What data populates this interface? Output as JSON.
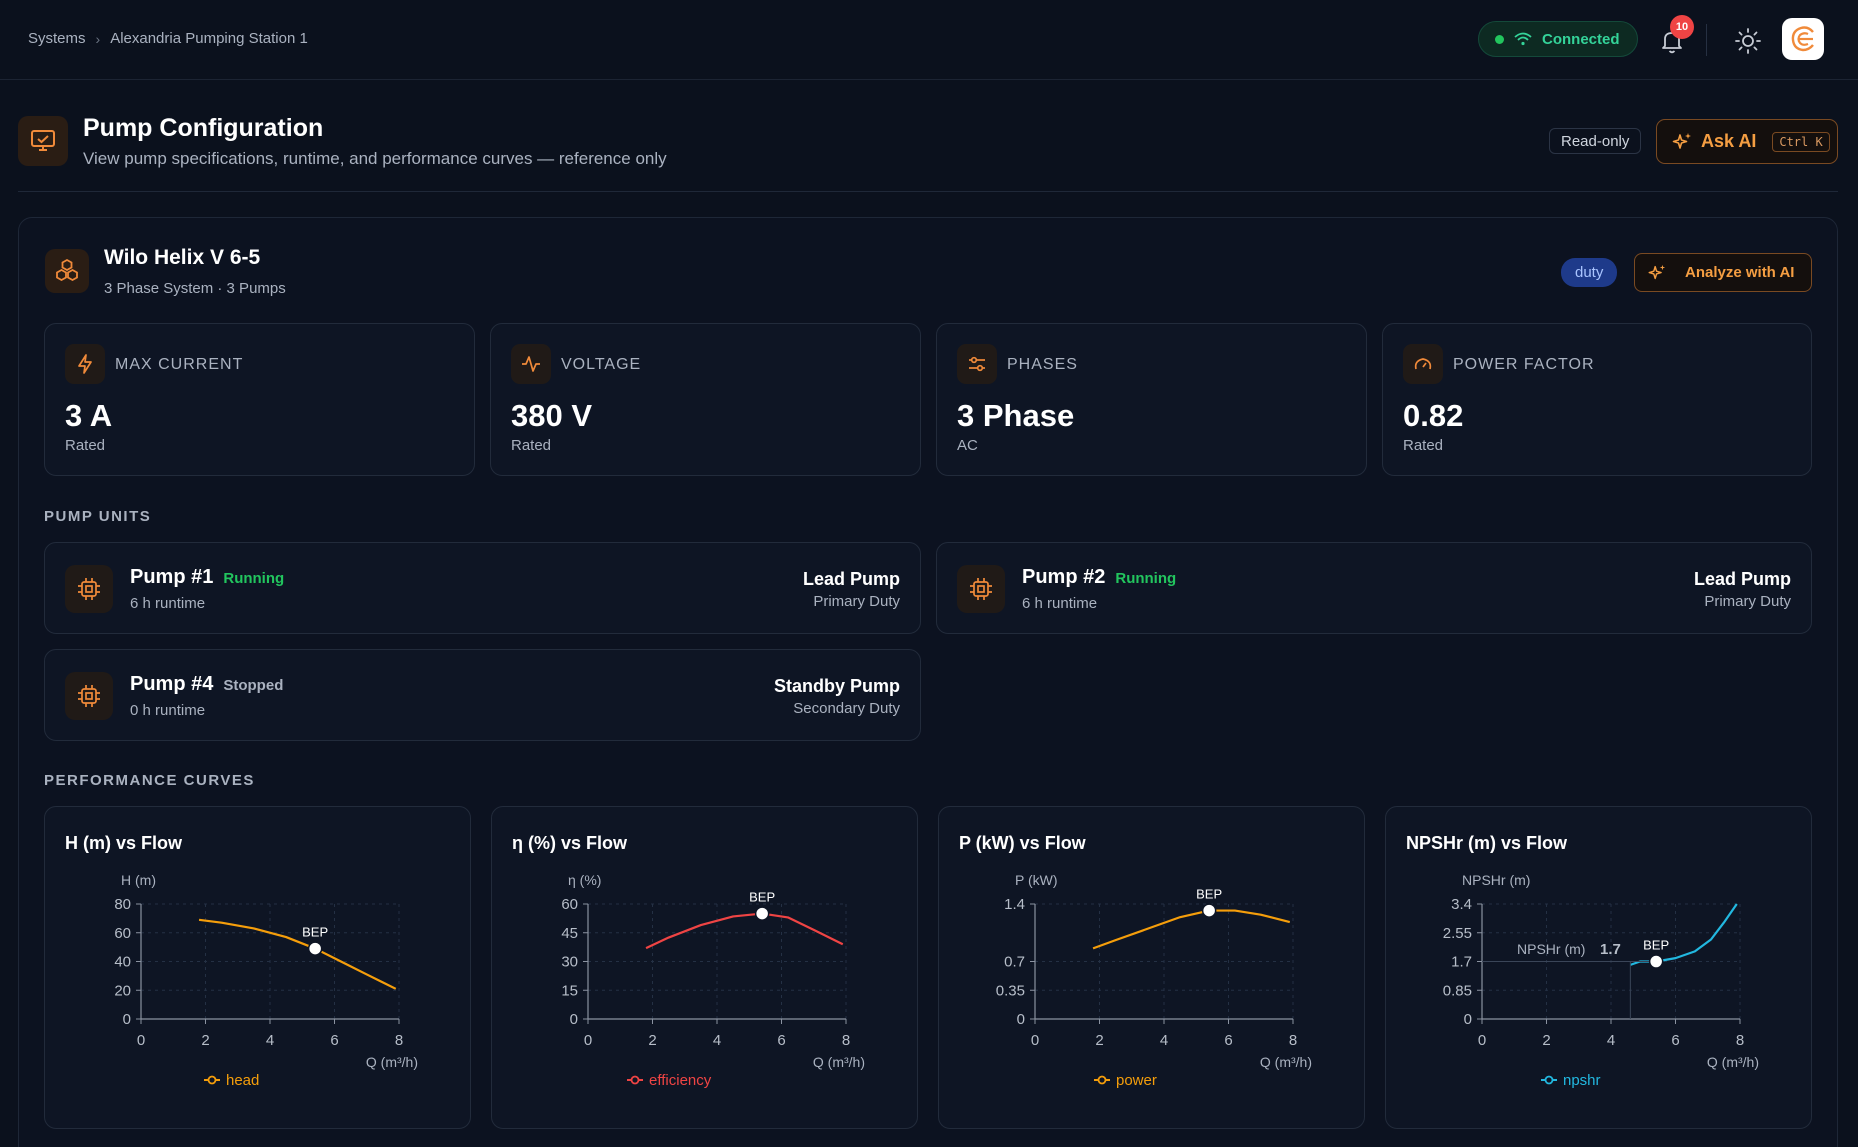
{
  "breadcrumb": {
    "root": "Systems",
    "current": "Alexandria Pumping Station 1"
  },
  "topbar": {
    "connection": "Connected",
    "notifications": "10"
  },
  "header": {
    "title": "Pump Configuration",
    "subtitle": "View pump specifications, runtime, and performance curves — reference only",
    "readonly": "Read-only",
    "ask_ai": "Ask AI",
    "shortcut": "Ctrl K"
  },
  "pump": {
    "name": "Wilo Helix V 6-5",
    "subtitle": "3 Phase System · 3 Pumps",
    "mode": "duty",
    "analyze": "Analyze with AI"
  },
  "stats": [
    {
      "label": "MAX CURRENT",
      "value": "3 A",
      "sub": "Rated",
      "icon": "lightning-icon"
    },
    {
      "label": "VOLTAGE",
      "value": "380 V",
      "sub": "Rated",
      "icon": "activity-icon"
    },
    {
      "label": "PHASES",
      "value": "3 Phase",
      "sub": "AC",
      "icon": "sliders-icon"
    },
    {
      "label": "POWER FACTOR",
      "value": "0.82",
      "sub": "Rated",
      "icon": "gauge-icon"
    }
  ],
  "units_title": "PUMP UNITS",
  "units": [
    {
      "name": "Pump #1",
      "status": "Running",
      "status_color": "#22c55e",
      "runtime": "6 h runtime",
      "role": "Lead Pump",
      "duty": "Primary Duty"
    },
    {
      "name": "Pump #2",
      "status": "Running",
      "status_color": "#22c55e",
      "runtime": "6 h runtime",
      "role": "Lead Pump",
      "duty": "Primary Duty"
    },
    {
      "name": "Pump #4",
      "status": "Stopped",
      "status_color": "#aab2c0",
      "runtime": "0 h runtime",
      "role": "Standby Pump",
      "duty": "Secondary Duty"
    }
  ],
  "curves_title": "PERFORMANCE CURVES",
  "chart_data": [
    {
      "type": "line",
      "title": "H (m) vs Flow",
      "ylabel": "H (m)",
      "xlabel": "Q (m³/h)",
      "xlim": [
        0,
        8
      ],
      "ylim": [
        0,
        80
      ],
      "xticks": [
        "0",
        "2",
        "4",
        "6",
        "8"
      ],
      "yticks": [
        "0",
        "20",
        "40",
        "60",
        "80"
      ],
      "series": [
        {
          "name": "head",
          "color": "#f59e0b",
          "x": [
            1.8,
            2.5,
            3.5,
            4.5,
            5.4,
            6.2,
            7.0,
            7.9
          ],
          "y": [
            69,
            67,
            63,
            57,
            49,
            40,
            31,
            21
          ]
        }
      ],
      "bep": {
        "label": "BEP",
        "x": 5.4,
        "y": 49
      }
    },
    {
      "type": "line",
      "title": "η (%) vs Flow",
      "ylabel": "η (%)",
      "xlabel": "Q (m³/h)",
      "xlim": [
        0,
        8
      ],
      "ylim": [
        0,
        60
      ],
      "xticks": [
        "0",
        "2",
        "4",
        "6",
        "8"
      ],
      "yticks": [
        "0",
        "15",
        "30",
        "45",
        "60"
      ],
      "series": [
        {
          "name": "efficiency",
          "color": "#ef4444",
          "x": [
            1.8,
            2.5,
            3.5,
            4.5,
            5.4,
            6.2,
            7.0,
            7.9
          ],
          "y": [
            37,
            42.5,
            49,
            53.5,
            55,
            53,
            46.5,
            39
          ]
        }
      ],
      "bep": {
        "label": "BEP",
        "x": 5.4,
        "y": 55
      }
    },
    {
      "type": "line",
      "title": "P (kW) vs Flow",
      "ylabel": "P (kW)",
      "xlabel": "Q (m³/h)",
      "xlim": [
        0,
        8
      ],
      "ylim": [
        0,
        1.4
      ],
      "xticks": [
        "0",
        "2",
        "4",
        "6",
        "8"
      ],
      "yticks": [
        "0",
        "0.35",
        "0.7",
        "1.4"
      ],
      "series": [
        {
          "name": "power",
          "color": "#f59e0b",
          "x": [
            1.8,
            2.5,
            3.5,
            4.5,
            5.4,
            6.2,
            7.0,
            7.9
          ],
          "y": [
            0.86,
            0.96,
            1.1,
            1.24,
            1.32,
            1.32,
            1.27,
            1.18
          ]
        }
      ],
      "bep": {
        "label": "BEP",
        "x": 5.4,
        "y": 1.32
      }
    },
    {
      "type": "line",
      "title": "NPSHr (m) vs Flow",
      "ylabel": "NPSHr (m)",
      "xlabel": "Q (m³/h)",
      "xlim": [
        0,
        8
      ],
      "ylim": [
        0,
        3.4
      ],
      "xticks": [
        "0",
        "2",
        "4",
        "6",
        "8"
      ],
      "yticks": [
        "0",
        "0.85",
        "1.7",
        "2.55",
        "3.4"
      ],
      "series": [
        {
          "name": "npshr",
          "color": "#22b8e0",
          "x": [
            4.6,
            4.9,
            5.4,
            6.0,
            6.6,
            7.1,
            7.5,
            7.9
          ],
          "y": [
            1.6,
            1.7,
            1.7,
            1.8,
            2.0,
            2.35,
            2.85,
            3.4
          ]
        }
      ],
      "bep": {
        "label": "BEP",
        "x": 5.4,
        "y": 1.7
      },
      "tooltip": {
        "label": "NPSHr (m)",
        "value": "1.7"
      }
    }
  ]
}
